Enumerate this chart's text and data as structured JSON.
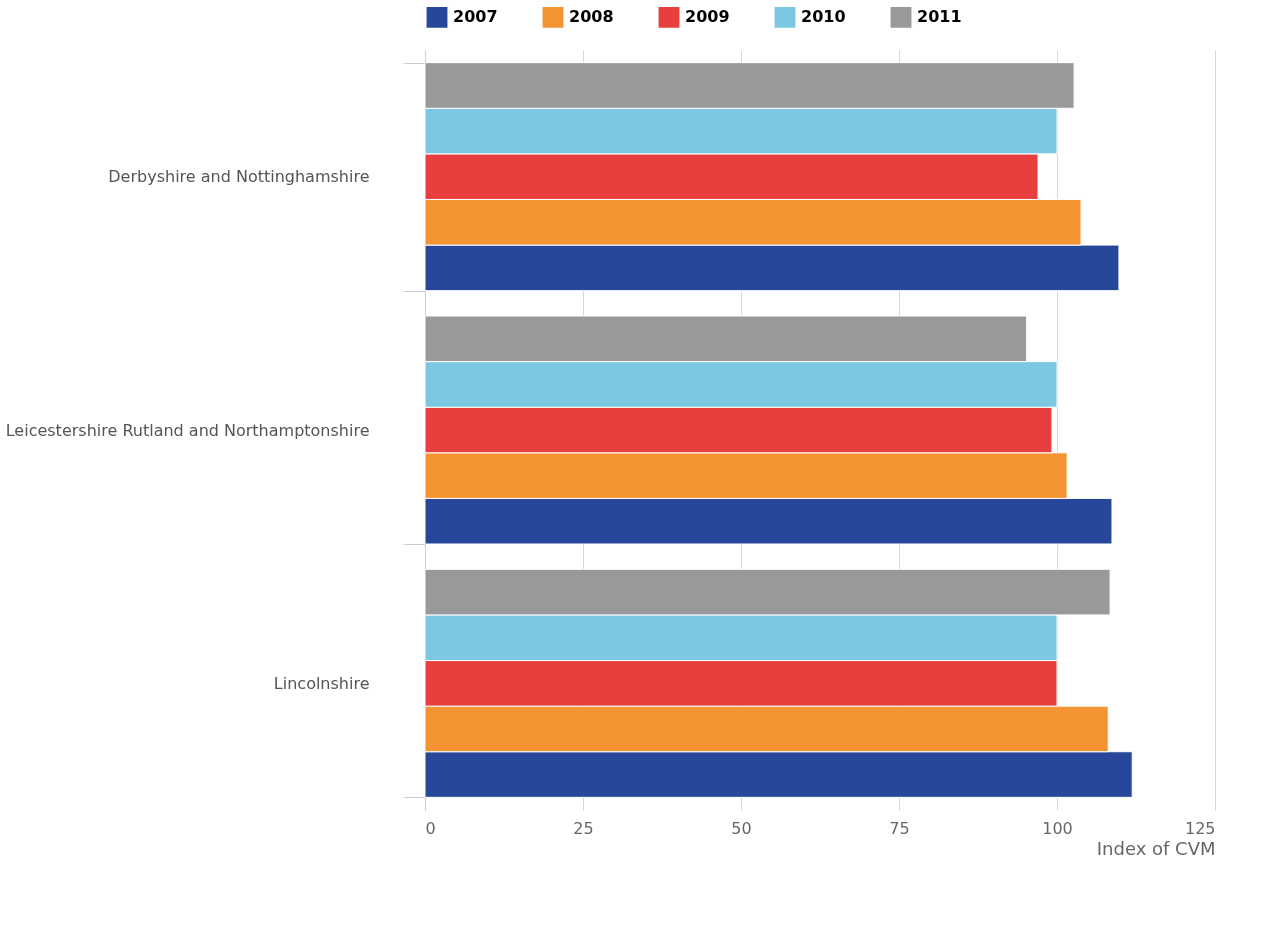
{
  "chart_data": {
    "type": "bar",
    "orientation": "horizontal",
    "xlabel": "Index of CVM",
    "categories": [
      "Derbyshire and Nottinghamshire",
      "Leicestershire Rutland and Northamptonshire",
      "Lincolnshire"
    ],
    "series": [
      {
        "name": "2007",
        "color": "#27479a",
        "values": [
          109.8,
          108.7,
          111.9
        ]
      },
      {
        "name": "2008",
        "color": "#f39331",
        "values": [
          103.8,
          101.6,
          108.1
        ]
      },
      {
        "name": "2009",
        "color": "#e73e3e",
        "values": [
          97,
          99.2,
          100
        ]
      },
      {
        "name": "2010",
        "color": "#7cc8e2",
        "values": [
          100,
          100,
          100
        ]
      },
      {
        "name": "2011",
        "color": "#999999",
        "values": [
          102.7,
          95.2,
          108.4
        ]
      }
    ],
    "xlim": [
      0,
      125
    ],
    "xticks": [
      0,
      25,
      50,
      75,
      100,
      125
    ],
    "grid": "x",
    "legend": "top"
  }
}
